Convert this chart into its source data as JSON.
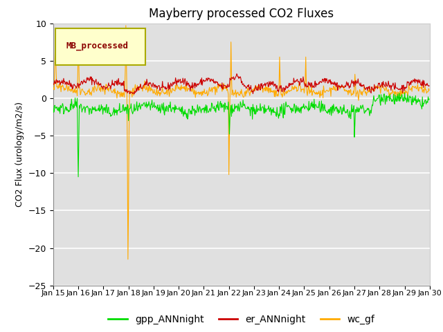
{
  "title": "Mayberry processed CO2 Fluxes",
  "ylabel": "CO2 Flux (urology/m2/s)",
  "ylim": [
    -25,
    10
  ],
  "yticks": [
    10,
    5,
    0,
    -5,
    -10,
    -15,
    -20,
    -25
  ],
  "background_color": "#ffffff",
  "plot_bg_color": "#e0e0e0",
  "legend_box_color": "#ffffcc",
  "legend_box_edge": "#aaaa00",
  "legend_label_color": "#8b0000",
  "legend_label": "MB_processed",
  "gpp_color": "#00dd00",
  "er_color": "#cc0000",
  "wc_color": "#ffaa00",
  "seed": 42,
  "n_points": 720
}
